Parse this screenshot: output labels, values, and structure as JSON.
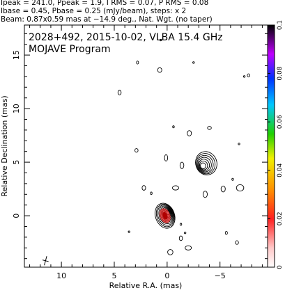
{
  "header": {
    "line1": "Ipeak = 241.0, Ppeak = 1.9, I RMS = 0.07, P RMS = 0.08",
    "line2": "Ibase = 0.45, Pbase = 0.25 (mJy/beam), steps: x 2",
    "line3": "Beam: 0.87x0.59 mas at −14.9 deg., Nat. Wgt. (no taper)"
  },
  "chart_data": {
    "type": "contour",
    "title": "2028+492, 2015-10-02, VLBA 15.4 GHz",
    "subtitle": "MOJAVE Program",
    "xlabel": "Relative R.A. (mas)",
    "ylabel": "Relative Declination (mas)",
    "xlim": [
      13.5,
      -9.5
    ],
    "ylim": [
      -4.8,
      17.8
    ],
    "x_ticks": [
      10,
      5,
      0,
      -5
    ],
    "x_tick_labels": [
      "10",
      "5",
      "0",
      "−5"
    ],
    "y_ticks": [
      0,
      5,
      10,
      15
    ],
    "y_tick_labels": [
      "0",
      "5",
      "10",
      "15"
    ],
    "colorbar": {
      "min": 0,
      "max": 0.1,
      "ticks": [
        0,
        0.02,
        0.04,
        0.06,
        0.08,
        0.1
      ],
      "tick_labels": [
        "0",
        "0.02",
        "0.04",
        "0.06",
        "0.08",
        "0.1"
      ]
    },
    "core": {
      "x": 0.2,
      "y": 0.0,
      "rx": 0.9,
      "ry": 1.2,
      "contour_levels": 10
    },
    "component": {
      "x": -3.7,
      "y": 4.9,
      "rx": 1.0,
      "ry": 1.1,
      "contour_levels": 7
    },
    "beam": {
      "major_mas": 0.87,
      "minor_mas": 0.59,
      "pa_deg": -14.9,
      "x": 11.5,
      "y": -4.2
    },
    "islands": [
      {
        "x": 2.8,
        "y": 14.3,
        "rx": 0.1,
        "ry": 0.14
      },
      {
        "x": 0.7,
        "y": 13.6,
        "rx": 0.2,
        "ry": 0.22
      },
      {
        "x": -2.5,
        "y": 14.3,
        "rx": 0.06,
        "ry": 0.08
      },
      {
        "x": -7.7,
        "y": 13.1,
        "rx": 0.12,
        "ry": 0.15
      },
      {
        "x": -7.3,
        "y": 13.0,
        "rx": 0.07,
        "ry": 0.08
      },
      {
        "x": 4.5,
        "y": 11.5,
        "rx": 0.15,
        "ry": 0.22
      },
      {
        "x": 0.6,
        "y": 16.4,
        "rx": 0.06,
        "ry": 0.07
      },
      {
        "x": -0.6,
        "y": 8.3,
        "rx": 0.08,
        "ry": 0.1
      },
      {
        "x": -2.1,
        "y": 7.7,
        "rx": 0.2,
        "ry": 0.25
      },
      {
        "x": -4.0,
        "y": 8.2,
        "rx": 0.18,
        "ry": 0.15
      },
      {
        "x": 2.9,
        "y": 6.1,
        "rx": 0.15,
        "ry": 0.17
      },
      {
        "x": 0.1,
        "y": 5.4,
        "rx": 0.15,
        "ry": 0.3
      },
      {
        "x": -1.4,
        "y": 4.7,
        "rx": 0.18,
        "ry": 0.3
      },
      {
        "x": -6.8,
        "y": 6.7,
        "rx": 0.06,
        "ry": 0.07
      },
      {
        "x": -6.2,
        "y": 3.4,
        "rx": 0.08,
        "ry": 0.1
      },
      {
        "x": 2.2,
        "y": 2.6,
        "rx": 0.17,
        "ry": 0.22
      },
      {
        "x": 1.5,
        "y": 2.1,
        "rx": 0.08,
        "ry": 0.12
      },
      {
        "x": -0.8,
        "y": 2.6,
        "rx": 0.3,
        "ry": 0.2
      },
      {
        "x": -3.6,
        "y": 2.0,
        "rx": 0.2,
        "ry": 0.3
      },
      {
        "x": -5.3,
        "y": 2.5,
        "rx": 0.2,
        "ry": 0.28
      },
      {
        "x": -6.9,
        "y": 2.6,
        "rx": 0.35,
        "ry": 0.3
      },
      {
        "x": -1.3,
        "y": -0.8,
        "rx": 0.08,
        "ry": 0.1
      },
      {
        "x": -1.7,
        "y": -1.6,
        "rx": 0.05,
        "ry": 0.06
      },
      {
        "x": -5.6,
        "y": -1.6,
        "rx": 0.1,
        "ry": 0.15
      },
      {
        "x": -6.6,
        "y": -2.5,
        "rx": 0.15,
        "ry": 0.17
      },
      {
        "x": 3.6,
        "y": -1.5,
        "rx": 0.06,
        "ry": 0.07
      },
      {
        "x": -1.3,
        "y": -2.1,
        "rx": 0.15,
        "ry": 0.22
      },
      {
        "x": -2.0,
        "y": -3.0,
        "rx": 0.3,
        "ry": 0.2
      },
      {
        "x": -0.3,
        "y": -3.4,
        "rx": 0.25,
        "ry": 0.25
      }
    ]
  }
}
